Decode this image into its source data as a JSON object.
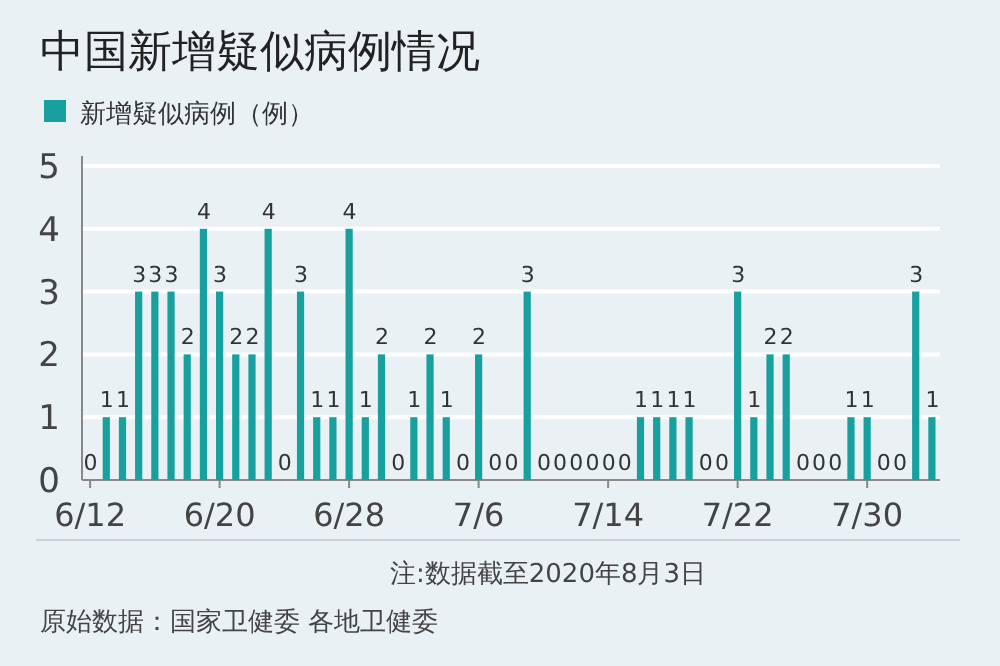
{
  "chart_data": {
    "type": "bar",
    "title": "中国新增疑似病例情况",
    "categories": [
      "6/12",
      null,
      null,
      null,
      null,
      null,
      null,
      null,
      "6/20",
      null,
      null,
      null,
      null,
      null,
      null,
      null,
      "6/28",
      null,
      null,
      null,
      null,
      null,
      null,
      null,
      "7/6",
      null,
      null,
      null,
      null,
      null,
      null,
      null,
      "7/14",
      null,
      null,
      null,
      null,
      null,
      null,
      null,
      "7/22",
      null,
      null,
      null,
      null,
      null,
      null,
      null,
      "7/30",
      null,
      null,
      null,
      null
    ],
    "series": [
      {
        "name": "新增疑似病例（例）",
        "color": "#17a09e",
        "values": [
          0,
          1,
          1,
          3,
          3,
          3,
          2,
          4,
          3,
          2,
          2,
          4,
          0,
          3,
          1,
          1,
          4,
          1,
          2,
          0,
          1,
          2,
          1,
          0,
          2,
          0,
          0,
          3,
          0,
          0,
          0,
          0,
          0,
          0,
          1,
          1,
          1,
          1,
          0,
          0,
          3,
          1,
          2,
          2,
          0,
          0,
          0,
          1,
          1,
          0,
          0,
          3,
          1
        ]
      }
    ],
    "ylim": [
      0,
      5
    ],
    "yticks": [
      0,
      1,
      2,
      3,
      4,
      5
    ],
    "grid": "y",
    "legend": "top left",
    "data_labels": true,
    "annotations": [
      "注:数据截至2020年8月3日",
      "原始数据：国家卫健委 各地卫健委"
    ]
  }
}
